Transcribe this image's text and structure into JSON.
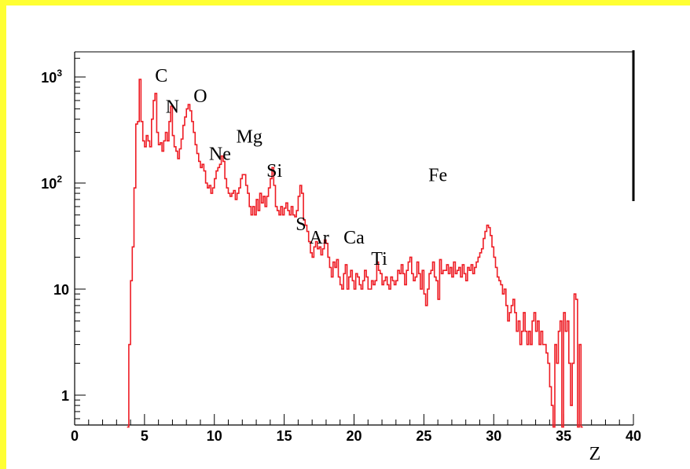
{
  "chart_data": {
    "type": "histogram",
    "title": "",
    "xlabel": "Z",
    "ylabel": "",
    "xlim": [
      0,
      40
    ],
    "ylim": [
      0.5,
      1800
    ],
    "y_scale": "log",
    "grid": false,
    "legend": "none",
    "series_color": "#ee1c24",
    "frame_color": "#ffff33",
    "x_ticks": [
      "0",
      "5",
      "10",
      "15",
      "20",
      "25",
      "30",
      "35",
      "40"
    ],
    "y_ticks": [
      {
        "value": 1,
        "label": "1"
      },
      {
        "value": 10,
        "label": "10"
      },
      {
        "value": 100,
        "label": "10",
        "exp": "2"
      },
      {
        "value": 1000,
        "label": "10",
        "exp": "3"
      }
    ],
    "annotations": [
      {
        "text": "C",
        "x": 6.2,
        "y": 900
      },
      {
        "text": "N",
        "x": 7.0,
        "y": 460
      },
      {
        "text": "O",
        "x": 9.0,
        "y": 580
      },
      {
        "text": "Ne",
        "x": 10.4,
        "y": 165
      },
      {
        "text": "Mg",
        "x": 12.5,
        "y": 240
      },
      {
        "text": "Si",
        "x": 14.3,
        "y": 115
      },
      {
        "text": "S",
        "x": 16.2,
        "y": 36
      },
      {
        "text": "Ar",
        "x": 17.5,
        "y": 27
      },
      {
        "text": "Ca",
        "x": 20.0,
        "y": 27
      },
      {
        "text": "Ti",
        "x": 21.8,
        "y": 17
      },
      {
        "text": "Fe",
        "x": 26.0,
        "y": 104
      }
    ],
    "bin_width": 0.125,
    "x_start": 3.75,
    "values": [
      0.5,
      3,
      12,
      25,
      90,
      360,
      380,
      950,
      380,
      250,
      220,
      280,
      250,
      220,
      400,
      600,
      700,
      300,
      230,
      240,
      200,
      250,
      300,
      250,
      380,
      530,
      280,
      220,
      200,
      170,
      210,
      260,
      350,
      420,
      500,
      550,
      480,
      380,
      300,
      230,
      190,
      160,
      140,
      150,
      130,
      100,
      90,
      95,
      80,
      90,
      110,
      130,
      140,
      150,
      180,
      160,
      110,
      90,
      80,
      75,
      80,
      85,
      70,
      80,
      90,
      110,
      120,
      120,
      95,
      80,
      60,
      50,
      60,
      50,
      70,
      55,
      80,
      65,
      75,
      60,
      75,
      90,
      110,
      140,
      95,
      60,
      55,
      50,
      60,
      50,
      58,
      65,
      55,
      50,
      60,
      50,
      48,
      55,
      75,
      95,
      80,
      45,
      40,
      35,
      28,
      22,
      20,
      25,
      28,
      24,
      25,
      21,
      24,
      29,
      27,
      20,
      16,
      13,
      18,
      16,
      19,
      13,
      11,
      10,
      14,
      17,
      10,
      13,
      15,
      12,
      10,
      14,
      13,
      11,
      10,
      12,
      15,
      13,
      10,
      10,
      12,
      11,
      12,
      18,
      15,
      14,
      11,
      12,
      13,
      11,
      10,
      13,
      12,
      11,
      12,
      15,
      14,
      17,
      14,
      11,
      15,
      18,
      20,
      14,
      12,
      13,
      18,
      14,
      10,
      15,
      9,
      7,
      10,
      14,
      15,
      18,
      13,
      12,
      8,
      19,
      14,
      15,
      15,
      17,
      14,
      16,
      13,
      18,
      14,
      15,
      16,
      13,
      17,
      14,
      12,
      16,
      15,
      17,
      14,
      16,
      18,
      20,
      22,
      24,
      30,
      35,
      40,
      38,
      32,
      25,
      20,
      16,
      13,
      12,
      11,
      9,
      10,
      7,
      5,
      6,
      7,
      8,
      6,
      4,
      5,
      3,
      4,
      6,
      4,
      3,
      4,
      3,
      5,
      6,
      4,
      5,
      3,
      4,
      3,
      3,
      2.5,
      2,
      1.2,
      0.8,
      0.5,
      3,
      2,
      4,
      5,
      0.5,
      6,
      4,
      5,
      2,
      0.8,
      2,
      9,
      8,
      0.5,
      3,
      0.5
    ]
  }
}
